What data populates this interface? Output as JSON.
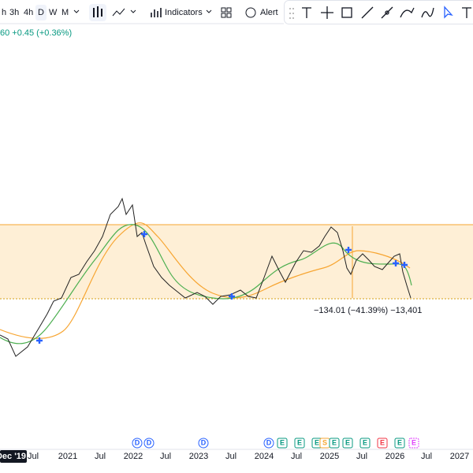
{
  "toolbar": {
    "timeframes": [
      "h",
      "3h",
      "4h",
      "D",
      "W",
      "M"
    ],
    "indicators": "Indicators",
    "alert": "Alert"
  },
  "legend": {
    "change": "60 +0.45 (+0.36%)"
  },
  "measure": {
    "label": "−134.01 (−41.39%) −13,401"
  },
  "time_axis": {
    "labels": [
      "Dec '19",
      "Jul",
      "2021",
      "Jul",
      "2022",
      "Jul",
      "2023",
      "Jul",
      "2024",
      "Jul",
      "2025",
      "Jul",
      "2026",
      "Jul",
      "2027"
    ]
  },
  "events": [
    "D",
    "D",
    "D",
    "D",
    "E",
    "E",
    "E",
    "S",
    "E",
    "E",
    "E",
    "E",
    "E",
    "E"
  ]
}
